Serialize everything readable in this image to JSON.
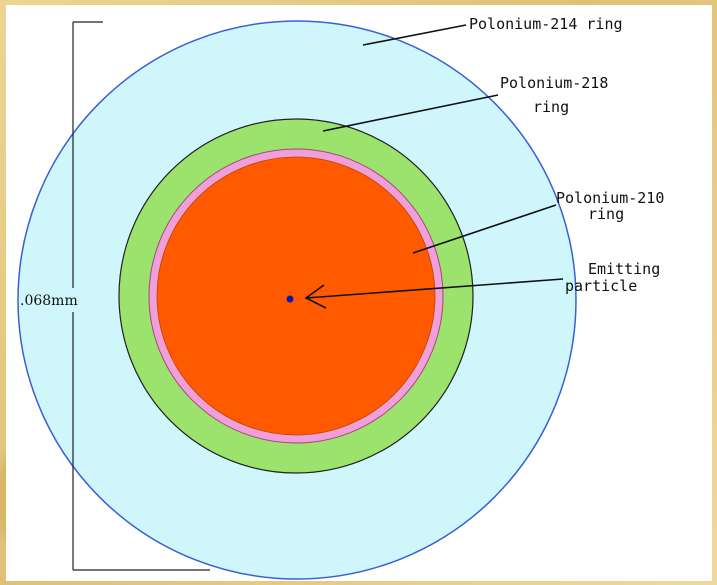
{
  "labels": {
    "po214": "Polonium-214 ring",
    "po218_line1": "Polonium-218",
    "po218_line2": "ring",
    "po210_line1": "Polonium-210",
    "po210_line2": "ring",
    "emit_line1": "Emitting",
    "emit_line2": "particle",
    "dimension": ".068mm"
  },
  "colors": {
    "po214_fill": "#cff6fb",
    "po214_stroke": "#3a5fd6",
    "po218_fill": "#9be36d",
    "po210_pink": "#f0a0d8",
    "core_fill": "#ff5a00",
    "particle": "#0a1aa8",
    "background": "#e3c983"
  }
}
